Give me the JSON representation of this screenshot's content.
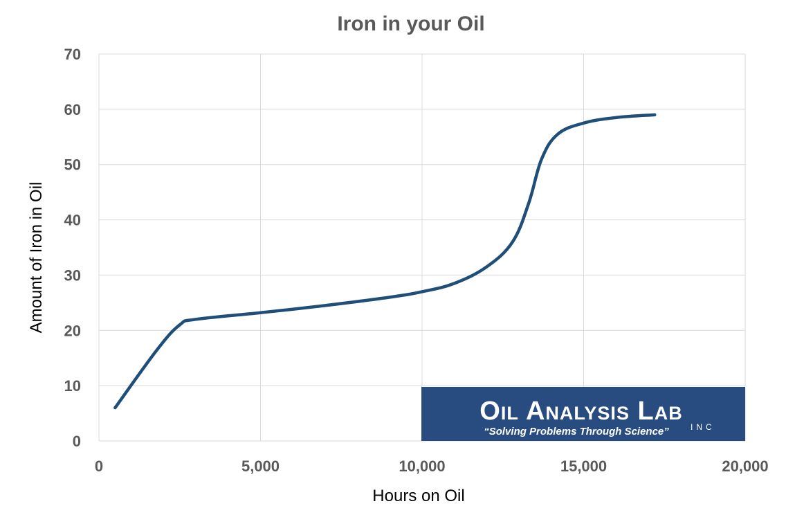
{
  "chart_data": {
    "type": "line",
    "title": "Iron in your Oil",
    "xlabel": "Hours on Oil",
    "ylabel": "Amount of Iron in Oil",
    "xlim": [
      0,
      20000
    ],
    "ylim": [
      0,
      70
    ],
    "x_ticks": [
      0,
      5000,
      10000,
      15000,
      20000
    ],
    "x_tick_labels": [
      "0",
      "5,000",
      "10,000",
      "15,000",
      "20,000"
    ],
    "y_ticks": [
      0,
      10,
      20,
      30,
      40,
      50,
      60,
      70
    ],
    "y_tick_labels": [
      "0",
      "10",
      "20",
      "30",
      "40",
      "50",
      "60",
      "70"
    ],
    "grid": true,
    "series": [
      {
        "color": "#1f4e79",
        "x": [
          500,
          1800,
          2500,
          3000,
          5000,
          7000,
          9000,
          10000,
          11000,
          12000,
          12800,
          13300,
          13700,
          14200,
          15000,
          16000,
          17200
        ],
        "y": [
          6,
          16.5,
          21,
          22,
          23.2,
          24.5,
          26,
          27,
          28.5,
          31.5,
          36,
          43,
          51,
          55.5,
          57.5,
          58.5,
          59
        ]
      }
    ]
  },
  "logo": {
    "name": "Oil Analysis Lab",
    "suffix": "INC",
    "tagline": "“Solving Problems Through Science”",
    "background": "#294c80"
  }
}
